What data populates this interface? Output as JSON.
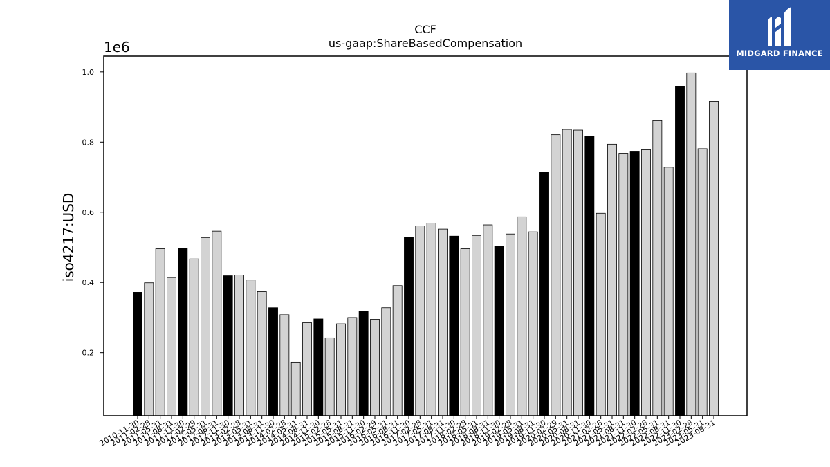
{
  "logo": {
    "text": "MIDGARD FINANCE",
    "icon": "midgard-m-logo-icon"
  },
  "chart_data": {
    "type": "bar",
    "title": "CCF",
    "subtitle": "us-gaap:ShareBasedCompensation",
    "xlabel": "",
    "ylabel": "iso4217:USD",
    "y_scale_label": "1e6",
    "ylim": [
      0.02,
      1.045
    ],
    "yticks": [
      0.2,
      0.4,
      0.6,
      0.8,
      1.0
    ],
    "ytick_labels": [
      "0.2",
      "0.4",
      "0.6",
      "0.8",
      "1.0"
    ],
    "grid": false,
    "colors": {
      "highlight": "#000000",
      "normal": "#d3d3d3",
      "edge": "#000000"
    },
    "categories": [
      "2010-11-30",
      "2011-02-28",
      "2011-05-31",
      "2011-08-31",
      "2011-11-30",
      "2012-02-29",
      "2012-05-31",
      "2012-08-31",
      "2012-11-30",
      "2013-02-28",
      "2013-05-31",
      "2013-08-31",
      "2013-11-30",
      "2014-02-28",
      "2014-05-31",
      "2014-08-31",
      "2014-11-30",
      "2015-02-28",
      "2015-05-31",
      "2015-08-31",
      "2015-11-30",
      "2016-02-29",
      "2016-05-31",
      "2016-08-31",
      "2016-11-30",
      "2017-02-28",
      "2017-05-31",
      "2017-08-31",
      "2017-11-30",
      "2018-02-28",
      "2018-05-31",
      "2018-08-31",
      "2018-11-30",
      "2019-02-28",
      "2019-05-31",
      "2019-08-31",
      "2019-11-30",
      "2020-02-29",
      "2020-05-31",
      "2020-08-31",
      "2020-11-30",
      "2021-02-28",
      "2021-05-31",
      "2021-08-31",
      "2021-11-30",
      "2022-02-28",
      "2022-05-31",
      "2022-08-31",
      "2022-11-30",
      "2023-02-28",
      "2023-05-31",
      "2023-08-31"
    ],
    "values": [
      0.372,
      0.399,
      0.496,
      0.414,
      0.498,
      0.467,
      0.528,
      0.546,
      0.419,
      0.421,
      0.407,
      0.374,
      0.328,
      0.308,
      0.173,
      0.285,
      0.296,
      0.242,
      0.282,
      0.3,
      0.318,
      0.295,
      0.328,
      0.391,
      0.528,
      0.561,
      0.569,
      0.552,
      0.532,
      0.496,
      0.534,
      0.564,
      0.504,
      0.538,
      0.587,
      0.544,
      0.714,
      0.821,
      0.836,
      0.834,
      0.817,
      0.597,
      0.794,
      0.768,
      0.774,
      0.778,
      0.861,
      0.728,
      0.959,
      0.997,
      0.781,
      0.916
    ],
    "highlighted": [
      true,
      false,
      false,
      false,
      true,
      false,
      false,
      false,
      true,
      false,
      false,
      false,
      true,
      false,
      false,
      false,
      true,
      false,
      false,
      false,
      true,
      false,
      false,
      false,
      true,
      false,
      false,
      false,
      true,
      false,
      false,
      false,
      true,
      false,
      false,
      false,
      true,
      false,
      false,
      false,
      true,
      false,
      false,
      false,
      true,
      false,
      false,
      false,
      true,
      false,
      false,
      false
    ]
  }
}
